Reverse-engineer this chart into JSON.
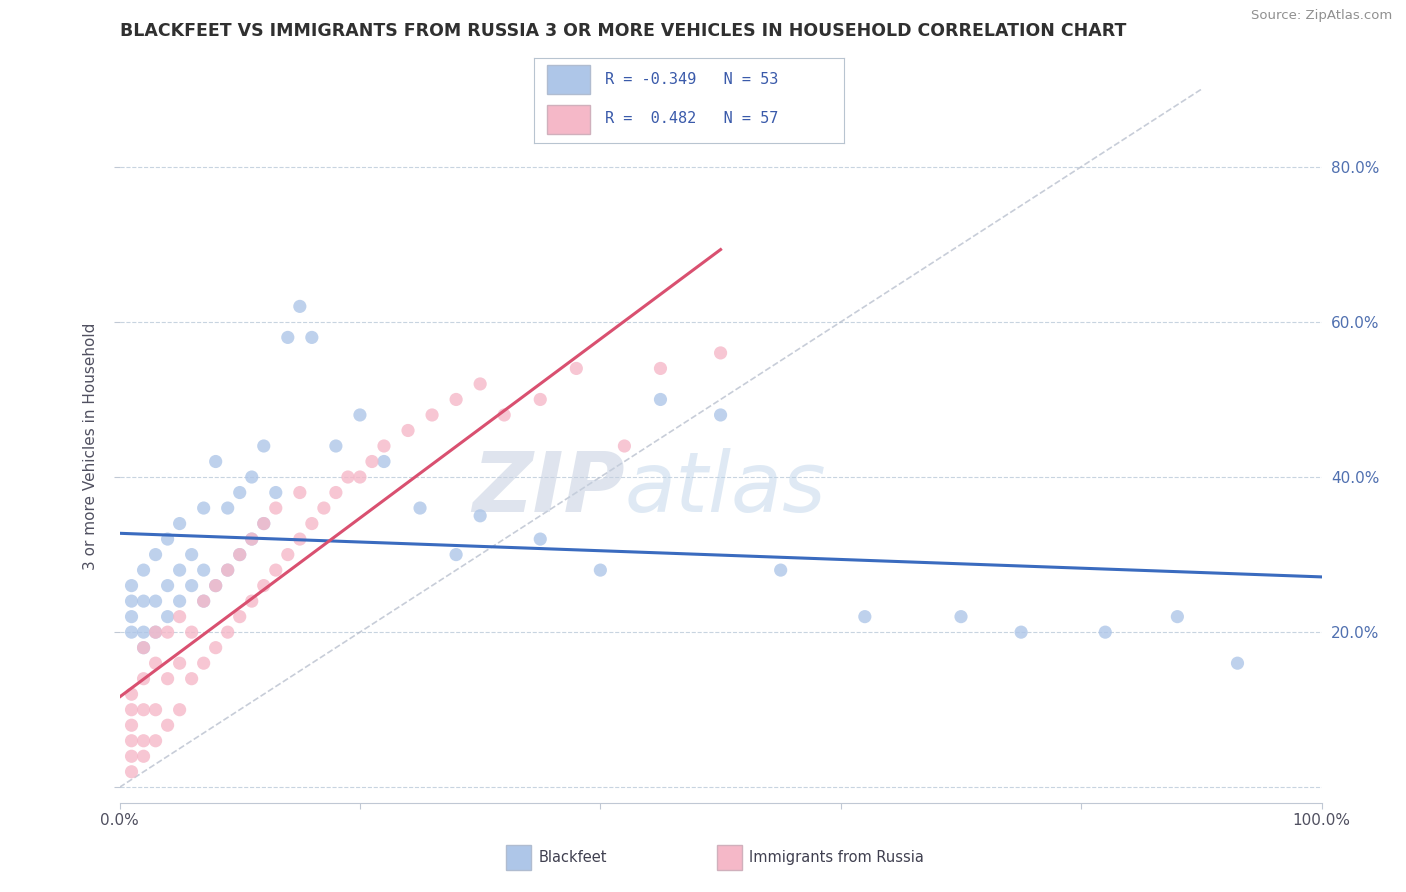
{
  "title": "BLACKFEET VS IMMIGRANTS FROM RUSSIA 3 OR MORE VEHICLES IN HOUSEHOLD CORRELATION CHART",
  "source_text": "Source: ZipAtlas.com",
  "ylabel": "3 or more Vehicles in Household",
  "watermark_zip": "ZIP",
  "watermark_atlas": "atlas",
  "xmin": 0.0,
  "xmax": 1.0,
  "ymin": -0.02,
  "ymax": 0.9,
  "x_ticks": [
    0.0,
    0.2,
    0.4,
    0.6,
    0.8,
    1.0
  ],
  "y_ticks": [
    0.0,
    0.2,
    0.4,
    0.6,
    0.8
  ],
  "legend_blue_label": "Blackfeet",
  "legend_pink_label": "Immigrants from Russia",
  "blue_R": -0.349,
  "blue_N": 53,
  "pink_R": 0.482,
  "pink_N": 57,
  "blue_color": "#aec6e8",
  "pink_color": "#f5b8c8",
  "blue_line_color": "#3a6bbf",
  "pink_line_color": "#d95070",
  "diag_line_color": "#b0b8c8",
  "background_color": "#ffffff",
  "grid_color": "#c8d4e0",
  "title_color": "#303030",
  "source_color": "#909090",
  "blue_scatter_x": [
    0.01,
    0.01,
    0.01,
    0.01,
    0.02,
    0.02,
    0.02,
    0.02,
    0.03,
    0.03,
    0.03,
    0.04,
    0.04,
    0.04,
    0.05,
    0.05,
    0.05,
    0.06,
    0.06,
    0.07,
    0.07,
    0.07,
    0.08,
    0.08,
    0.09,
    0.09,
    0.1,
    0.1,
    0.11,
    0.11,
    0.12,
    0.12,
    0.13,
    0.14,
    0.15,
    0.16,
    0.18,
    0.2,
    0.22,
    0.25,
    0.28,
    0.3,
    0.35,
    0.4,
    0.45,
    0.5,
    0.55,
    0.62,
    0.7,
    0.75,
    0.82,
    0.88,
    0.93
  ],
  "blue_scatter_y": [
    0.2,
    0.22,
    0.24,
    0.26,
    0.18,
    0.2,
    0.24,
    0.28,
    0.2,
    0.24,
    0.3,
    0.22,
    0.26,
    0.32,
    0.24,
    0.28,
    0.34,
    0.26,
    0.3,
    0.24,
    0.28,
    0.36,
    0.26,
    0.42,
    0.28,
    0.36,
    0.3,
    0.38,
    0.32,
    0.4,
    0.34,
    0.44,
    0.38,
    0.58,
    0.62,
    0.58,
    0.44,
    0.48,
    0.42,
    0.36,
    0.3,
    0.35,
    0.32,
    0.28,
    0.5,
    0.48,
    0.28,
    0.22,
    0.22,
    0.2,
    0.2,
    0.22,
    0.16
  ],
  "pink_scatter_x": [
    0.01,
    0.01,
    0.01,
    0.01,
    0.01,
    0.01,
    0.02,
    0.02,
    0.02,
    0.02,
    0.02,
    0.03,
    0.03,
    0.03,
    0.03,
    0.04,
    0.04,
    0.04,
    0.05,
    0.05,
    0.05,
    0.06,
    0.06,
    0.07,
    0.07,
    0.08,
    0.08,
    0.09,
    0.09,
    0.1,
    0.1,
    0.11,
    0.11,
    0.12,
    0.12,
    0.13,
    0.13,
    0.14,
    0.15,
    0.15,
    0.16,
    0.17,
    0.18,
    0.19,
    0.2,
    0.21,
    0.22,
    0.24,
    0.26,
    0.28,
    0.3,
    0.32,
    0.35,
    0.38,
    0.42,
    0.45,
    0.5
  ],
  "pink_scatter_y": [
    0.02,
    0.04,
    0.06,
    0.08,
    0.1,
    0.12,
    0.04,
    0.06,
    0.1,
    0.14,
    0.18,
    0.06,
    0.1,
    0.16,
    0.2,
    0.08,
    0.14,
    0.2,
    0.1,
    0.16,
    0.22,
    0.14,
    0.2,
    0.16,
    0.24,
    0.18,
    0.26,
    0.2,
    0.28,
    0.22,
    0.3,
    0.24,
    0.32,
    0.26,
    0.34,
    0.28,
    0.36,
    0.3,
    0.32,
    0.38,
    0.34,
    0.36,
    0.38,
    0.4,
    0.4,
    0.42,
    0.44,
    0.46,
    0.48,
    0.5,
    0.52,
    0.48,
    0.5,
    0.54,
    0.44,
    0.54,
    0.56
  ]
}
